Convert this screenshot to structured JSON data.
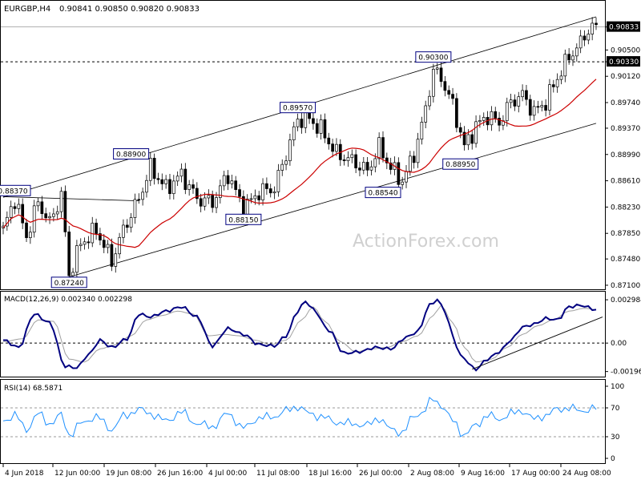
{
  "header": {
    "symbol": "EURGBP,H4",
    "ohlc": "0.90841 0.90850 0.90820 0.90833"
  },
  "watermark": "ActionForex.com",
  "colors": {
    "candle": "#000000",
    "ma": "#cc0000",
    "channel": "#000000",
    "macd": "#000080",
    "signal": "#a0a0a0",
    "rsi": "#1e90ff",
    "label_border": "#000080",
    "grid": "#000000",
    "current_price_box": "#000000"
  },
  "chart_data": [
    {
      "type": "candlestick",
      "title": "EURGBP,H4",
      "y_ticks": [
        "0.90833",
        "0.90500",
        "0.90330",
        "0.90120",
        "0.89740",
        "0.89370",
        "0.88990",
        "0.88610",
        "0.88230",
        "0.87850",
        "0.87480",
        "0.87100"
      ],
      "x_ticks": [
        "4 Jun 2018",
        "12 Jun 00:00",
        "19 Jun 08:00",
        "26 Jun 16:00",
        "4 Jul 00:00",
        "11 Jul 08:00",
        "18 Jul 16:00",
        "26 Jul 00:00",
        "2 Aug 08:00",
        "9 Aug 16:00",
        "17 Aug 00:00",
        "24 Aug 08:00"
      ],
      "ylim": [
        0.8703,
        0.9113
      ],
      "current_price": 0.90833,
      "level_line": 0.9033,
      "annotations": [
        {
          "label": "0.88370",
          "x_idx": 3,
          "y": 0.8837
        },
        {
          "label": "0.87240",
          "x_idx": 17,
          "y": 0.8724
        },
        {
          "label": "0.88900",
          "x_idx": 33,
          "y": 0.889
        },
        {
          "label": "0.88150",
          "x_idx": 62,
          "y": 0.8815
        },
        {
          "label": "0.89570",
          "x_idx": 76,
          "y": 0.8957
        },
        {
          "label": "0.88540",
          "x_idx": 98,
          "y": 0.8854
        },
        {
          "label": "0.90300",
          "x_idx": 111,
          "y": 0.903
        },
        {
          "label": "0.88950",
          "x_idx": 118,
          "y": 0.8895
        }
      ],
      "channel": {
        "upper": [
          [
            0,
            0.8837
          ],
          [
            153,
            0.9098
          ]
        ],
        "lower": [
          [
            17,
            0.8722
          ],
          [
            153,
            0.8944
          ]
        ]
      },
      "ma_period": 55,
      "anchors": [
        [
          0,
          0.879
        ],
        [
          3,
          0.8835
        ],
        [
          6,
          0.878
        ],
        [
          9,
          0.883
        ],
        [
          12,
          0.88
        ],
        [
          15,
          0.884
        ],
        [
          17,
          0.8725
        ],
        [
          20,
          0.877
        ],
        [
          24,
          0.879
        ],
        [
          28,
          0.8745
        ],
        [
          31,
          0.879
        ],
        [
          35,
          0.8835
        ],
        [
          38,
          0.888
        ],
        [
          42,
          0.885
        ],
        [
          46,
          0.887
        ],
        [
          50,
          0.8835
        ],
        [
          54,
          0.883
        ],
        [
          58,
          0.887
        ],
        [
          62,
          0.882
        ],
        [
          66,
          0.8845
        ],
        [
          70,
          0.885
        ],
        [
          73,
          0.89
        ],
        [
          76,
          0.895
        ],
        [
          79,
          0.895
        ],
        [
          82,
          0.8935
        ],
        [
          86,
          0.89
        ],
        [
          90,
          0.889
        ],
        [
          94,
          0.8875
        ],
        [
          97,
          0.891
        ],
        [
          100,
          0.888
        ],
        [
          103,
          0.886
        ],
        [
          106,
          0.89
        ],
        [
          108,
          0.894
        ],
        [
          111,
          0.902
        ],
        [
          113,
          0.901
        ],
        [
          116,
          0.897
        ],
        [
          119,
          0.891
        ],
        [
          122,
          0.894
        ],
        [
          125,
          0.8955
        ],
        [
          128,
          0.8945
        ],
        [
          131,
          0.8975
        ],
        [
          134,
          0.8985
        ],
        [
          137,
          0.896
        ],
        [
          140,
          0.8975
        ],
        [
          143,
          0.901
        ],
        [
          146,
          0.904
        ],
        [
          149,
          0.906
        ],
        [
          151,
          0.908
        ],
        [
          153,
          0.9083
        ]
      ]
    },
    {
      "type": "line",
      "title": "MACD(12,26,9) 0.002340 0.002298",
      "y_ticks": [
        "0.002984",
        "0.00",
        "-0.00196"
      ],
      "ylim": [
        -0.0022,
        0.0031
      ],
      "series": [
        {
          "name": "MACD",
          "points": [
            [
              0,
              0.0002
            ],
            [
              4,
              -0.0003
            ],
            [
              8,
              0.002
            ],
            [
              12,
              0.0014
            ],
            [
              16,
              -0.0016
            ],
            [
              19,
              -0.0017
            ],
            [
              22,
              -0.0008
            ],
            [
              25,
              0.0002
            ],
            [
              28,
              -0.0003
            ],
            [
              32,
              0.0003
            ],
            [
              35,
              0.002
            ],
            [
              38,
              0.0018
            ],
            [
              42,
              0.0022
            ],
            [
              46,
              0.0025
            ],
            [
              50,
              0.0018
            ],
            [
              54,
              -0.0002
            ],
            [
              58,
              0.001
            ],
            [
              62,
              0.0006
            ],
            [
              66,
              -0.0001
            ],
            [
              70,
              -0.0002
            ],
            [
              73,
              0.0005
            ],
            [
              76,
              0.0022
            ],
            [
              78,
              0.0029
            ],
            [
              80,
              0.0023
            ],
            [
              84,
              0.0009
            ],
            [
              88,
              -0.0007
            ],
            [
              92,
              -0.0006
            ],
            [
              96,
              -0.0003
            ],
            [
              100,
              -0.0004
            ],
            [
              104,
              0.0004
            ],
            [
              107,
              0.0008
            ],
            [
              110,
              0.0026
            ],
            [
              112,
              0.003
            ],
            [
              114,
              0.0022
            ],
            [
              116,
              0.0005
            ],
            [
              118,
              -0.0009
            ],
            [
              122,
              -0.0018
            ],
            [
              125,
              -0.0011
            ],
            [
              128,
              -0.0006
            ],
            [
              131,
              0.0002
            ],
            [
              134,
              0.0011
            ],
            [
              137,
              0.0013
            ],
            [
              140,
              0.0017
            ],
            [
              143,
              0.0016
            ],
            [
              146,
              0.0025
            ],
            [
              149,
              0.0026
            ],
            [
              153,
              0.0023
            ]
          ]
        },
        {
          "name": "Signal",
          "points": [
            [
              0,
              0.0001
            ],
            [
              5,
              0.0003
            ],
            [
              9,
              0.0016
            ],
            [
              13,
              0.0015
            ],
            [
              17,
              -0.0011
            ],
            [
              21,
              -0.0013
            ],
            [
              25,
              -0.0004
            ],
            [
              29,
              -0.0001
            ],
            [
              33,
              0.0005
            ],
            [
              37,
              0.0016
            ],
            [
              41,
              0.0019
            ],
            [
              45,
              0.0022
            ],
            [
              49,
              0.002
            ],
            [
              53,
              0.0005
            ],
            [
              57,
              0.0006
            ],
            [
              61,
              0.0005
            ],
            [
              65,
              0.0002
            ],
            [
              69,
              -0.0001
            ],
            [
              73,
              0.0002
            ],
            [
              77,
              0.0016
            ],
            [
              80,
              0.0025
            ],
            [
              83,
              0.0015
            ],
            [
              87,
              0.0001
            ],
            [
              91,
              -0.0006
            ],
            [
              95,
              -0.0004
            ],
            [
              99,
              -0.0003
            ],
            [
              103,
              0.0001
            ],
            [
              107,
              0.0005
            ],
            [
              111,
              0.0019
            ],
            [
              113,
              0.0026
            ],
            [
              116,
              0.0014
            ],
            [
              119,
              -0.0003
            ],
            [
              122,
              -0.0013
            ],
            [
              126,
              -0.0011
            ],
            [
              130,
              -0.0003
            ],
            [
              134,
              0.0006
            ],
            [
              138,
              0.0012
            ],
            [
              142,
              0.0016
            ],
            [
              146,
              0.0022
            ],
            [
              150,
              0.0024
            ],
            [
              153,
              0.0023
            ]
          ]
        }
      ],
      "trendline": [
        [
          121,
          -0.0018
        ],
        [
          153,
          0.0018
        ]
      ]
    },
    {
      "type": "line",
      "title": "RSI(14) 68.5871",
      "y_ticks": [
        "100",
        "70",
        "30",
        "0"
      ],
      "ylim": [
        0,
        100
      ],
      "levels": [
        70,
        30
      ],
      "series": [
        {
          "name": "RSI",
          "points": [
            [
              0,
              52
            ],
            [
              3,
              60
            ],
            [
              6,
              40
            ],
            [
              9,
              62
            ],
            [
              12,
              48
            ],
            [
              15,
              60
            ],
            [
              17,
              32
            ],
            [
              20,
              48
            ],
            [
              24,
              58
            ],
            [
              28,
              40
            ],
            [
              31,
              58
            ],
            [
              35,
              68
            ],
            [
              38,
              62
            ],
            [
              42,
              52
            ],
            [
              46,
              64
            ],
            [
              50,
              48
            ],
            [
              54,
              44
            ],
            [
              58,
              62
            ],
            [
              62,
              42
            ],
            [
              66,
              56
            ],
            [
              70,
              58
            ],
            [
              73,
              66
            ],
            [
              76,
              72
            ],
            [
              79,
              62
            ],
            [
              82,
              58
            ],
            [
              86,
              50
            ],
            [
              90,
              48
            ],
            [
              94,
              46
            ],
            [
              97,
              56
            ],
            [
              100,
              40
            ],
            [
              103,
              36
            ],
            [
              106,
              58
            ],
            [
              108,
              64
            ],
            [
              111,
              82
            ],
            [
              113,
              74
            ],
            [
              116,
              52
            ],
            [
              119,
              32
            ],
            [
              122,
              46
            ],
            [
              125,
              60
            ],
            [
              128,
              54
            ],
            [
              131,
              62
            ],
            [
              134,
              66
            ],
            [
              137,
              54
            ],
            [
              140,
              60
            ],
            [
              143,
              68
            ],
            [
              146,
              70
            ],
            [
              149,
              66
            ],
            [
              153,
              69
            ]
          ]
        }
      ]
    }
  ]
}
